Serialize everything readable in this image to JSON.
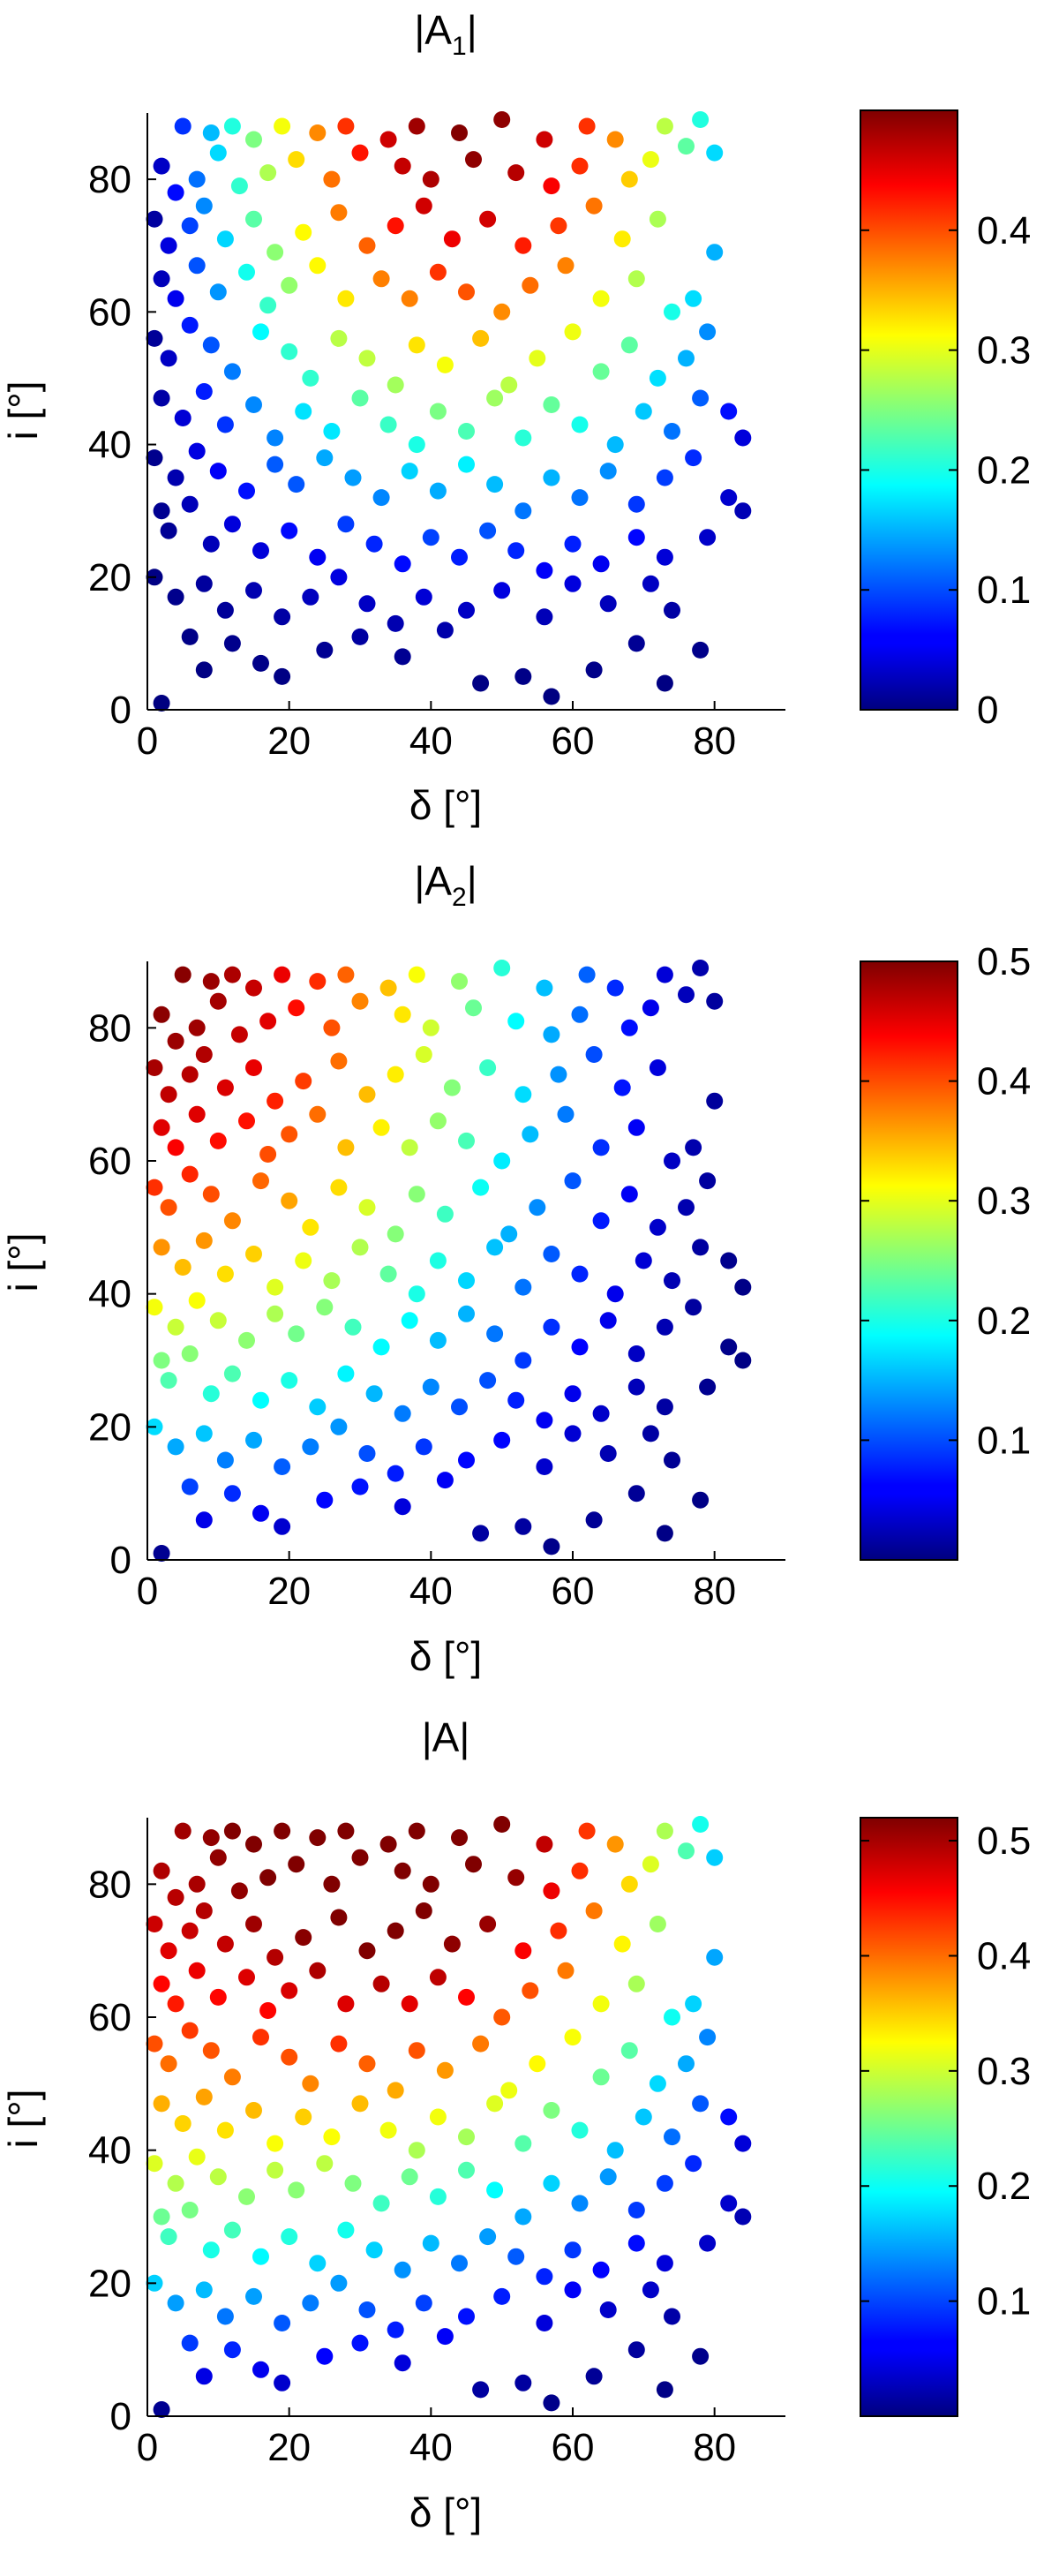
{
  "chart_data": [
    {
      "type": "scatter",
      "title": "|A₁|",
      "title_main": "|A",
      "title_sub": "1",
      "title_end": "|",
      "xlabel": "δ [°]",
      "ylabel": "i [°]",
      "xlim": [
        0,
        90
      ],
      "ylim": [
        0,
        90
      ],
      "xticks": [
        "0",
        "20",
        "40",
        "60",
        "80"
      ],
      "yticks": [
        "0",
        "20",
        "40",
        "60",
        "80"
      ],
      "grid": false,
      "colormap": "jet",
      "clim": [
        0,
        0.5
      ],
      "colorbar_ticks": [
        "0",
        "0.1",
        "0.2",
        "0.3",
        "0.4"
      ],
      "colorbar_tick_values": [
        0,
        0.1,
        0.2,
        0.3,
        0.4
      ],
      "color_formula": "0.5*sin(2*delta)*sin(i)^2"
    },
    {
      "type": "scatter",
      "title": "|A₂|",
      "title_main": "|A",
      "title_sub": "2",
      "title_end": "|",
      "xlabel": "δ [°]",
      "ylabel": "i [°]",
      "xlim": [
        0,
        90
      ],
      "ylim": [
        0,
        90
      ],
      "xticks": [
        "0",
        "20",
        "40",
        "60",
        "80"
      ],
      "yticks": [
        "0",
        "20",
        "40",
        "60",
        "80"
      ],
      "grid": false,
      "colormap": "jet",
      "clim": [
        0,
        0.5
      ],
      "colorbar_ticks": [
        "0.1",
        "0.2",
        "0.3",
        "0.4",
        "0.5"
      ],
      "colorbar_tick_values": [
        0.1,
        0.2,
        0.3,
        0.4,
        0.5
      ],
      "color_formula": "0.5*cos(delta)^2*sin(i)"
    },
    {
      "type": "scatter",
      "title": "|A|",
      "title_main": "|A|",
      "title_sub": "",
      "title_end": "",
      "xlabel": "δ [°]",
      "ylabel": "i [°]",
      "xlim": [
        0,
        90
      ],
      "ylim": [
        0,
        90
      ],
      "xticks": [
        "0",
        "20",
        "40",
        "60",
        "80"
      ],
      "yticks": [
        "0",
        "20",
        "40",
        "60",
        "80"
      ],
      "grid": false,
      "colormap": "jet",
      "clim": [
        0,
        0.52
      ],
      "colorbar_ticks": [
        "0.1",
        "0.2",
        "0.3",
        "0.4",
        "0.5"
      ],
      "colorbar_tick_values": [
        0.1,
        0.2,
        0.3,
        0.4,
        0.5
      ],
      "color_formula": "sqrt(|A1|^2+|A2|^2)"
    }
  ],
  "points": [
    [
      5,
      88
    ],
    [
      9,
      87
    ],
    [
      12,
      88
    ],
    [
      15,
      86
    ],
    [
      19,
      88
    ],
    [
      24,
      87
    ],
    [
      28,
      88
    ],
    [
      34,
      86
    ],
    [
      38,
      88
    ],
    [
      44,
      87
    ],
    [
      50,
      89
    ],
    [
      56,
      86
    ],
    [
      62,
      88
    ],
    [
      66,
      86
    ],
    [
      73,
      88
    ],
    [
      78,
      89
    ],
    [
      80,
      84
    ],
    [
      2,
      82
    ],
    [
      4,
      78
    ],
    [
      7,
      80
    ],
    [
      10,
      84
    ],
    [
      13,
      79
    ],
    [
      17,
      81
    ],
    [
      21,
      83
    ],
    [
      26,
      80
    ],
    [
      30,
      84
    ],
    [
      36,
      82
    ],
    [
      40,
      80
    ],
    [
      46,
      83
    ],
    [
      52,
      81
    ],
    [
      57,
      79
    ],
    [
      61,
      82
    ],
    [
      68,
      80
    ],
    [
      71,
      83
    ],
    [
      76,
      85
    ],
    [
      1,
      74
    ],
    [
      3,
      70
    ],
    [
      6,
      73
    ],
    [
      8,
      76
    ],
    [
      11,
      71
    ],
    [
      15,
      74
    ],
    [
      18,
      69
    ],
    [
      22,
      72
    ],
    [
      27,
      75
    ],
    [
      31,
      70
    ],
    [
      35,
      73
    ],
    [
      39,
      76
    ],
    [
      43,
      71
    ],
    [
      48,
      74
    ],
    [
      53,
      70
    ],
    [
      58,
      73
    ],
    [
      63,
      76
    ],
    [
      67,
      71
    ],
    [
      72,
      74
    ],
    [
      2,
      65
    ],
    [
      4,
      62
    ],
    [
      7,
      67
    ],
    [
      10,
      63
    ],
    [
      14,
      66
    ],
    [
      17,
      61
    ],
    [
      20,
      64
    ],
    [
      24,
      67
    ],
    [
      28,
      62
    ],
    [
      33,
      65
    ],
    [
      37,
      62
    ],
    [
      41,
      66
    ],
    [
      45,
      63
    ],
    [
      50,
      60
    ],
    [
      54,
      64
    ],
    [
      59,
      67
    ],
    [
      64,
      62
    ],
    [
      69,
      65
    ],
    [
      74,
      60
    ],
    [
      77,
      62
    ],
    [
      80,
      69
    ],
    [
      1,
      56
    ],
    [
      3,
      53
    ],
    [
      6,
      58
    ],
    [
      9,
      55
    ],
    [
      12,
      51
    ],
    [
      16,
      57
    ],
    [
      20,
      54
    ],
    [
      23,
      50
    ],
    [
      27,
      56
    ],
    [
      31,
      53
    ],
    [
      35,
      49
    ],
    [
      38,
      55
    ],
    [
      42,
      52
    ],
    [
      47,
      56
    ],
    [
      51,
      49
    ],
    [
      55,
      53
    ],
    [
      60,
      57
    ],
    [
      64,
      51
    ],
    [
      68,
      55
    ],
    [
      72,
      50
    ],
    [
      76,
      53
    ],
    [
      79,
      57
    ],
    [
      2,
      47
    ],
    [
      5,
      44
    ],
    [
      8,
      48
    ],
    [
      11,
      43
    ],
    [
      15,
      46
    ],
    [
      18,
      41
    ],
    [
      22,
      45
    ],
    [
      26,
      42
    ],
    [
      30,
      47
    ],
    [
      34,
      43
    ],
    [
      38,
      40
    ],
    [
      41,
      45
    ],
    [
      45,
      42
    ],
    [
      49,
      47
    ],
    [
      53,
      41
    ],
    [
      57,
      46
    ],
    [
      61,
      43
    ],
    [
      66,
      40
    ],
    [
      70,
      45
    ],
    [
      74,
      42
    ],
    [
      78,
      47
    ],
    [
      82,
      45
    ],
    [
      84,
      41
    ],
    [
      1,
      38
    ],
    [
      4,
      35
    ],
    [
      7,
      39
    ],
    [
      10,
      36
    ],
    [
      14,
      33
    ],
    [
      18,
      37
    ],
    [
      21,
      34
    ],
    [
      25,
      38
    ],
    [
      29,
      35
    ],
    [
      33,
      32
    ],
    [
      37,
      36
    ],
    [
      41,
      33
    ],
    [
      45,
      37
    ],
    [
      49,
      34
    ],
    [
      53,
      30
    ],
    [
      57,
      35
    ],
    [
      61,
      32
    ],
    [
      65,
      36
    ],
    [
      69,
      31
    ],
    [
      73,
      35
    ],
    [
      77,
      38
    ],
    [
      82,
      32
    ],
    [
      84,
      30
    ],
    [
      2,
      30
    ],
    [
      3,
      27
    ],
    [
      6,
      31
    ],
    [
      9,
      25
    ],
    [
      12,
      28
    ],
    [
      16,
      24
    ],
    [
      20,
      27
    ],
    [
      24,
      23
    ],
    [
      28,
      28
    ],
    [
      32,
      25
    ],
    [
      36,
      22
    ],
    [
      40,
      26
    ],
    [
      44,
      23
    ],
    [
      48,
      27
    ],
    [
      52,
      24
    ],
    [
      56,
      21
    ],
    [
      60,
      25
    ],
    [
      64,
      22
    ],
    [
      69,
      26
    ],
    [
      73,
      23
    ],
    [
      79,
      26
    ],
    [
      1,
      20
    ],
    [
      4,
      17
    ],
    [
      8,
      19
    ],
    [
      11,
      15
    ],
    [
      15,
      18
    ],
    [
      19,
      14
    ],
    [
      23,
      17
    ],
    [
      27,
      20
    ],
    [
      31,
      16
    ],
    [
      35,
      13
    ],
    [
      39,
      17
    ],
    [
      45,
      15
    ],
    [
      50,
      18
    ],
    [
      56,
      14
    ],
    [
      60,
      19
    ],
    [
      65,
      16
    ],
    [
      71,
      19
    ],
    [
      74,
      15
    ],
    [
      2,
      1
    ],
    [
      6,
      11
    ],
    [
      8,
      6
    ],
    [
      12,
      10
    ],
    [
      16,
      7
    ],
    [
      19,
      5
    ],
    [
      25,
      9
    ],
    [
      30,
      11
    ],
    [
      36,
      8
    ],
    [
      42,
      12
    ],
    [
      47,
      4
    ],
    [
      53,
      5
    ],
    [
      57,
      2
    ],
    [
      63,
      6
    ],
    [
      69,
      10
    ],
    [
      73,
      4
    ],
    [
      78,
      9
    ]
  ]
}
